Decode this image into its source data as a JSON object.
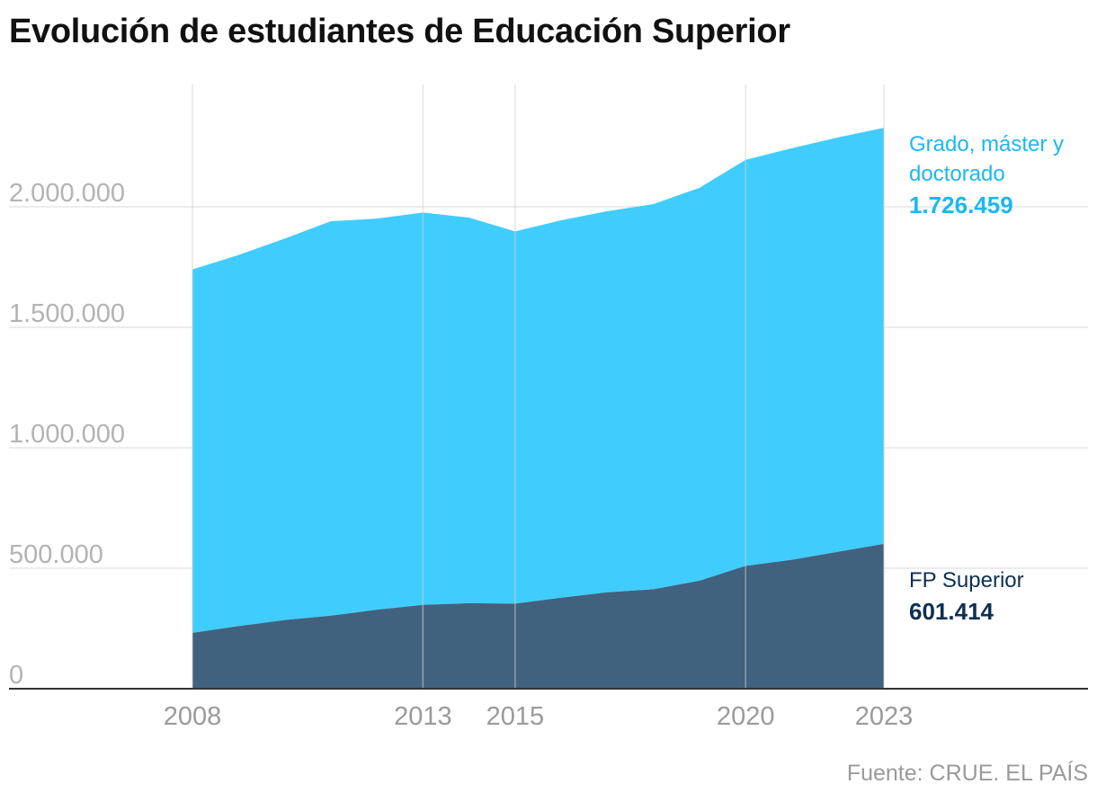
{
  "title": "Evolución de estudiantes de Educación Superior",
  "source": "Fuente: CRUE. EL PAÍS",
  "colors": {
    "grado": "#40cdfd",
    "fp": "#41627f",
    "grado_label": "#1cb8ef",
    "fp_label": "#0e2f52",
    "grid": "#e6e6e6",
    "axis": "#333333"
  },
  "chart_data": {
    "type": "area",
    "stacked": true,
    "title": "Evolución de estudiantes de Educación Superior",
    "x": [
      2008,
      2009,
      2010,
      2011,
      2012,
      2013,
      2014,
      2015,
      2016,
      2017,
      2018,
      2019,
      2020,
      2021,
      2022,
      2023
    ],
    "x_ticks": [
      "2008",
      "2013",
      "2015",
      "2020",
      "2023"
    ],
    "y_ticks": [
      "0",
      "500.000",
      "1.000.000",
      "1.500.000",
      "2.000.000"
    ],
    "y_tick_values": [
      0,
      500000,
      1000000,
      1500000,
      2000000
    ],
    "ylim": [
      0,
      2500000
    ],
    "xlim": [
      2008,
      2023
    ],
    "grid": true,
    "series": [
      {
        "name": "FP Superior",
        "values": [
          232000,
          260000,
          285000,
          303000,
          328000,
          348000,
          355000,
          353000,
          378000,
          400000,
          413000,
          448000,
          510000,
          535000,
          568000,
          601414
        ],
        "color": "#41627f",
        "label_line1": "FP Superior",
        "label_value": "601.414"
      },
      {
        "name": "Grado, máster y doctorado",
        "values": [
          1508000,
          1540000,
          1583000,
          1637000,
          1623000,
          1628000,
          1600000,
          1545000,
          1566000,
          1582000,
          1598000,
          1631000,
          1685000,
          1708000,
          1720000,
          1726459
        ],
        "color": "#40cdfd",
        "label_line1": "Grado, máster y",
        "label_line2": "doctorado",
        "label_value": "1.726.459"
      }
    ]
  }
}
